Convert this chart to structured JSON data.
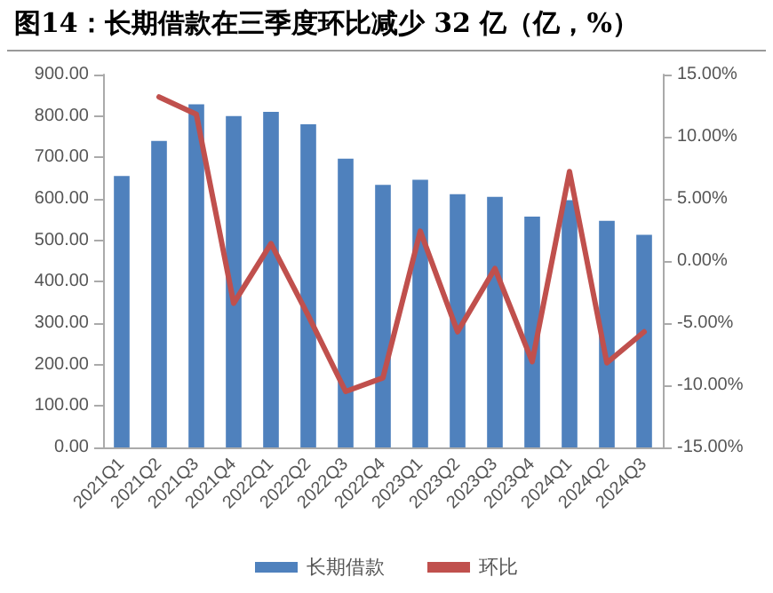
{
  "chart_data": {
    "type": "bar",
    "title": "图14：长期借款在三季度环比减少 32 亿（亿，%）",
    "categories": [
      "2021Q1",
      "2021Q2",
      "2021Q3",
      "2021Q4",
      "2022Q1",
      "2022Q2",
      "2022Q3",
      "2022Q4",
      "2023Q1",
      "2023Q2",
      "2023Q3",
      "2023Q4",
      "2024Q1",
      "2024Q2",
      "2024Q3"
    ],
    "series": [
      {
        "name": "长期借款",
        "color": "#4f81bd",
        "values": [
          655,
          740,
          828,
          800,
          810,
          780,
          697,
          634,
          646,
          611,
          605,
          557,
          597,
          547,
          513
        ]
      },
      {
        "name": "环比",
        "type": "line",
        "axis": "y2",
        "color": "#c0504d",
        "values": [
          null,
          13.2,
          11.8,
          -3.4,
          1.4,
          -4.4,
          -10.5,
          -9.4,
          2.4,
          -5.7,
          -0.6,
          -8.1,
          7.2,
          -8.2,
          -5.7
        ]
      }
    ],
    "ylim": [
      0,
      900
    ],
    "yticks": [
      {
        "value": 0,
        "label": "0.00"
      },
      {
        "value": 100,
        "label": "100.00"
      },
      {
        "value": 200,
        "label": "200.00"
      },
      {
        "value": 300,
        "label": "300.00"
      },
      {
        "value": 400,
        "label": "400.00"
      },
      {
        "value": 500,
        "label": "500.00"
      },
      {
        "value": 600,
        "label": "600.00"
      },
      {
        "value": 700,
        "label": "700.00"
      },
      {
        "value": 800,
        "label": "800.00"
      },
      {
        "value": 900,
        "label": "900.00"
      }
    ],
    "y2lim": [
      -15,
      15
    ],
    "y2ticks": [
      {
        "value": -15,
        "label": "-15.00%"
      },
      {
        "value": -10,
        "label": "-10.00%"
      },
      {
        "value": -5,
        "label": "-5.00%"
      },
      {
        "value": 0,
        "label": "0.00%"
      },
      {
        "value": 5,
        "label": "5.00%"
      },
      {
        "value": 10,
        "label": "10.00%"
      },
      {
        "value": 15,
        "label": "15.00%"
      }
    ],
    "grid": false,
    "legend": "bottom",
    "marker": "none",
    "line_style": "solid"
  }
}
